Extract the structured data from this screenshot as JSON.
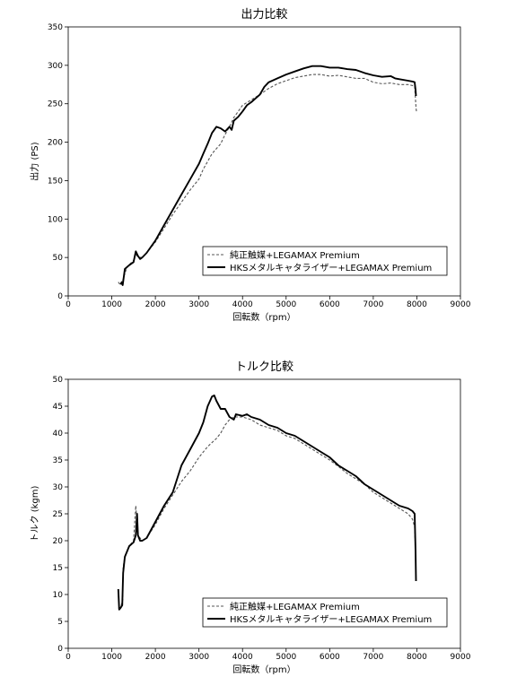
{
  "chart_data": [
    {
      "type": "line",
      "title": "出力比較",
      "xlabel": "回転数（rpm）",
      "ylabel": "出力 (PS)",
      "xlim": [
        0,
        9000
      ],
      "ylim": [
        0,
        350
      ],
      "x_ticks": [
        "0",
        "1000",
        "2000",
        "3000",
        "4000",
        "5000",
        "6000",
        "7000",
        "8000",
        "9000"
      ],
      "y_ticks": [
        "0",
        "50",
        "100",
        "150",
        "200",
        "250",
        "300",
        "350"
      ],
      "legend_position": "bottom-right",
      "series": [
        {
          "name": "純正触媒+LEGAMAX Premium",
          "style": "dashed",
          "color": "#555555",
          "points": [
            [
              1150,
              18
            ],
            [
              1200,
              14
            ],
            [
              1250,
              20
            ],
            [
              1350,
              38
            ],
            [
              1500,
              46
            ],
            [
              1550,
              55
            ],
            [
              1600,
              50
            ],
            [
              1700,
              50
            ],
            [
              1800,
              56
            ],
            [
              2000,
              70
            ],
            [
              2200,
              88
            ],
            [
              2400,
              106
            ],
            [
              2600,
              122
            ],
            [
              2800,
              138
            ],
            [
              3000,
              152
            ],
            [
              3100,
              165
            ],
            [
              3200,
              175
            ],
            [
              3300,
              185
            ],
            [
              3500,
              198
            ],
            [
              3600,
              210
            ],
            [
              3700,
              220
            ],
            [
              3800,
              232
            ],
            [
              3900,
              240
            ],
            [
              4000,
              248
            ],
            [
              4200,
              255
            ],
            [
              4400,
              262
            ],
            [
              4600,
              270
            ],
            [
              4800,
              276
            ],
            [
              5000,
              280
            ],
            [
              5200,
              284
            ],
            [
              5400,
              286
            ],
            [
              5600,
              288
            ],
            [
              5800,
              288
            ],
            [
              6000,
              286
            ],
            [
              6200,
              287
            ],
            [
              6400,
              285
            ],
            [
              6600,
              283
            ],
            [
              6800,
              283
            ],
            [
              7000,
              278
            ],
            [
              7200,
              276
            ],
            [
              7400,
              277
            ],
            [
              7600,
              275
            ],
            [
              7800,
              275
            ],
            [
              7950,
              273
            ],
            [
              7980,
              245
            ],
            [
              7990,
              240
            ]
          ]
        },
        {
          "name": "HKSメタルキャタライザー+LEGAMAX Premium",
          "style": "solid",
          "color": "#000000",
          "points": [
            [
              1200,
              15
            ],
            [
              1230,
              18
            ],
            [
              1250,
              14
            ],
            [
              1300,
              35
            ],
            [
              1400,
              40
            ],
            [
              1500,
              44
            ],
            [
              1550,
              58
            ],
            [
              1600,
              52
            ],
            [
              1650,
              48
            ],
            [
              1700,
              50
            ],
            [
              1800,
              56
            ],
            [
              2000,
              72
            ],
            [
              2200,
              92
            ],
            [
              2400,
              112
            ],
            [
              2600,
              132
            ],
            [
              2800,
              152
            ],
            [
              3000,
              172
            ],
            [
              3100,
              185
            ],
            [
              3200,
              198
            ],
            [
              3300,
              212
            ],
            [
              3400,
              220
            ],
            [
              3500,
              218
            ],
            [
              3600,
              214
            ],
            [
              3700,
              220
            ],
            [
              3750,
              216
            ],
            [
              3800,
              228
            ],
            [
              3900,
              233
            ],
            [
              4000,
              240
            ],
            [
              4100,
              248
            ],
            [
              4200,
              252
            ],
            [
              4400,
              262
            ],
            [
              4500,
              272
            ],
            [
              4600,
              278
            ],
            [
              4800,
              283
            ],
            [
              5000,
              288
            ],
            [
              5200,
              292
            ],
            [
              5400,
              296
            ],
            [
              5600,
              299
            ],
            [
              5800,
              299
            ],
            [
              6000,
              297
            ],
            [
              6200,
              297
            ],
            [
              6400,
              295
            ],
            [
              6600,
              294
            ],
            [
              6800,
              290
            ],
            [
              7000,
              287
            ],
            [
              7200,
              285
            ],
            [
              7400,
              286
            ],
            [
              7500,
              283
            ],
            [
              7600,
              282
            ],
            [
              7800,
              280
            ],
            [
              7900,
              279
            ],
            [
              7950,
              278
            ],
            [
              7970,
              268
            ],
            [
              7980,
              260
            ]
          ]
        }
      ]
    },
    {
      "type": "line",
      "title": "トルク比較",
      "xlabel": "回転数（rpm）",
      "ylabel": "トルク (kgm)",
      "xlim": [
        0,
        9000
      ],
      "ylim": [
        0,
        50
      ],
      "x_ticks": [
        "0",
        "1000",
        "2000",
        "3000",
        "4000",
        "5000",
        "6000",
        "7000",
        "8000",
        "9000"
      ],
      "y_ticks": [
        "0",
        "5",
        "10",
        "15",
        "20",
        "25",
        "30",
        "35",
        "40",
        "45",
        "50"
      ],
      "legend_position": "bottom-right",
      "series": [
        {
          "name": "純正触媒+LEGAMAX Premium",
          "style": "dashed",
          "color": "#555555",
          "points": [
            [
              1150,
              7.5
            ],
            [
              1200,
              7.5
            ],
            [
              1250,
              9
            ],
            [
              1260,
              15
            ],
            [
              1300,
              17
            ],
            [
              1400,
              19
            ],
            [
              1500,
              20
            ],
            [
              1550,
              26.5
            ],
            [
              1600,
              21
            ],
            [
              1700,
              20
            ],
            [
              1800,
              20.5
            ],
            [
              2000,
              23
            ],
            [
              2200,
              26
            ],
            [
              2400,
              28.5
            ],
            [
              2600,
              31
            ],
            [
              2800,
              33
            ],
            [
              3000,
              35.5
            ],
            [
              3200,
              37.5
            ],
            [
              3400,
              39
            ],
            [
              3500,
              40
            ],
            [
              3600,
              41.5
            ],
            [
              3700,
              42.5
            ],
            [
              3800,
              43
            ],
            [
              4000,
              43
            ],
            [
              4200,
              42.5
            ],
            [
              4400,
              41.5
            ],
            [
              4600,
              41
            ],
            [
              4800,
              40.5
            ],
            [
              5000,
              39.5
            ],
            [
              5200,
              39
            ],
            [
              5400,
              38
            ],
            [
              5600,
              37
            ],
            [
              5800,
              36
            ],
            [
              6000,
              35
            ],
            [
              6200,
              33.8
            ],
            [
              6400,
              32.5
            ],
            [
              6600,
              31.5
            ],
            [
              6800,
              30.5
            ],
            [
              7000,
              29
            ],
            [
              7200,
              28
            ],
            [
              7400,
              27
            ],
            [
              7600,
              26
            ],
            [
              7800,
              25
            ],
            [
              7900,
              24
            ],
            [
              7950,
              22.5
            ],
            [
              7960,
              20
            ]
          ]
        },
        {
          "name": "HKSメタルキャタライザー+LEGAMAX Premium",
          "style": "solid",
          "color": "#000000",
          "points": [
            [
              1150,
              11
            ],
            [
              1170,
              7.2
            ],
            [
              1200,
              7.5
            ],
            [
              1240,
              8
            ],
            [
              1260,
              14
            ],
            [
              1300,
              17
            ],
            [
              1400,
              19
            ],
            [
              1500,
              19.7
            ],
            [
              1550,
              21
            ],
            [
              1580,
              25
            ],
            [
              1600,
              21
            ],
            [
              1650,
              20
            ],
            [
              1700,
              20
            ],
            [
              1800,
              20.5
            ],
            [
              2000,
              23.5
            ],
            [
              2200,
              26.5
            ],
            [
              2400,
              29
            ],
            [
              2600,
              34
            ],
            [
              2800,
              37
            ],
            [
              3000,
              40
            ],
            [
              3100,
              42
            ],
            [
              3200,
              45
            ],
            [
              3300,
              46.8
            ],
            [
              3350,
              47
            ],
            [
              3400,
              46
            ],
            [
              3500,
              44.5
            ],
            [
              3600,
              44.5
            ],
            [
              3700,
              43
            ],
            [
              3800,
              42.5
            ],
            [
              3850,
              43.5
            ],
            [
              4000,
              43.2
            ],
            [
              4100,
              43.5
            ],
            [
              4200,
              43
            ],
            [
              4400,
              42.5
            ],
            [
              4600,
              41.5
            ],
            [
              4800,
              41
            ],
            [
              5000,
              40
            ],
            [
              5200,
              39.5
            ],
            [
              5400,
              38.5
            ],
            [
              5600,
              37.5
            ],
            [
              5800,
              36.5
            ],
            [
              6000,
              35.5
            ],
            [
              6200,
              34
            ],
            [
              6400,
              33
            ],
            [
              6600,
              32
            ],
            [
              6800,
              30.5
            ],
            [
              7000,
              29.5
            ],
            [
              7200,
              28.5
            ],
            [
              7400,
              27.5
            ],
            [
              7600,
              26.5
            ],
            [
              7800,
              26
            ],
            [
              7900,
              25.5
            ],
            [
              7950,
              25
            ],
            [
              7970,
              18
            ],
            [
              7980,
              12.5
            ]
          ]
        }
      ]
    }
  ]
}
